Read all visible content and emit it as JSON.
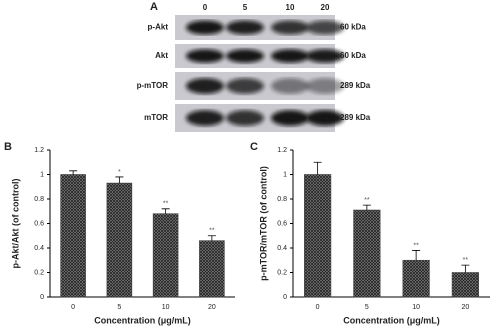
{
  "panel_a": {
    "label": "A",
    "lanes": [
      "0",
      "5",
      "10",
      "20"
    ],
    "rows": [
      {
        "protein": "p-Akt",
        "size": "60 kDa"
      },
      {
        "protein": "Akt",
        "size": "60 kDa"
      },
      {
        "protein": "p-mTOR",
        "size": "289 kDa"
      },
      {
        "protein": "mTOR",
        "size": "289 kDa"
      }
    ]
  },
  "chart_data": [
    {
      "type": "bar",
      "panel_label": "B",
      "categories": [
        "0",
        "5",
        "10",
        "20"
      ],
      "values": [
        1.0,
        0.93,
        0.68,
        0.46
      ],
      "errors": [
        0.03,
        0.05,
        0.04,
        0.04
      ],
      "annotations": [
        null,
        "*",
        "**",
        "**"
      ],
      "xlabel": "Concentration (μg/mL)",
      "ylabel": "p-Akt/Akt (of control)",
      "ylim": [
        0,
        1.2
      ],
      "yticks": [
        0,
        0.2,
        0.4,
        0.6,
        0.8,
        1,
        1.2
      ],
      "color": "#444444"
    },
    {
      "type": "bar",
      "panel_label": "C",
      "categories": [
        "0",
        "5",
        "10",
        "20"
      ],
      "values": [
        1.0,
        0.71,
        0.3,
        0.2
      ],
      "errors": [
        0.1,
        0.04,
        0.08,
        0.06
      ],
      "annotations": [
        null,
        "**",
        "**",
        "**"
      ],
      "xlabel": "Concentration (μg/mL)",
      "ylabel": "p-mTOR/mTOR (of control)",
      "ylim": [
        0,
        1.2
      ],
      "yticks": [
        0,
        0.2,
        0.4,
        0.6,
        0.8,
        1,
        1.2
      ],
      "color": "#444444"
    }
  ]
}
